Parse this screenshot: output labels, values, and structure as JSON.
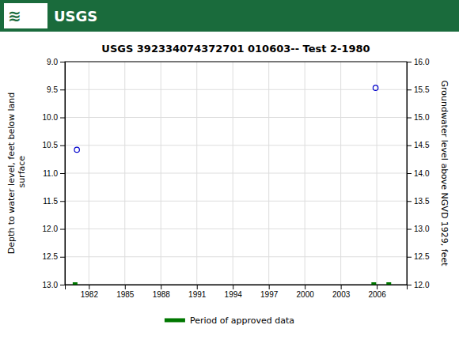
{
  "chart_data": {
    "type": "scatter",
    "title": "USGS 392334074372701 010603-- Test 2-1980",
    "ylabel": "Depth to water level, feet below land\n surface",
    "y2label": "Groundwater level above NGVD 1929, feet",
    "annotations": [
      {
        "text": "≋"
      },
      {
        "text": "USGS"
      }
    ],
    "xlim": [
      1980.0,
      2008.5
    ],
    "xticks": [
      1982,
      1985,
      1988,
      1991,
      1994,
      1997,
      2000,
      2003,
      2006
    ],
    "ylim": [
      13.0,
      9.0
    ],
    "yticks": [
      {
        "value": 9.0,
        "label": "9.0"
      },
      9.5,
      {
        "value": 10.0,
        "label": "10.0"
      },
      10.5,
      {
        "value": 11.0,
        "label": "11.0"
      },
      11.5,
      {
        "value": 12.0,
        "label": "12.0"
      },
      12.5,
      {
        "value": 13.0,
        "label": "13.0"
      }
    ],
    "y2lim": [
      12.0,
      16.0
    ],
    "y2ticks": [
      {
        "value": 16.0,
        "label": "16.0"
      },
      15.5,
      {
        "value": 15.0,
        "label": "15.0"
      },
      14.5,
      {
        "value": 14.0,
        "label": "14.0"
      },
      13.5,
      {
        "value": 13.0,
        "label": "13.0"
      },
      12.5,
      {
        "value": 12.0,
        "label": "12.0"
      }
    ],
    "grid": true,
    "legend": "bottom",
    "series": [
      {
        "color": "#0000cc",
        "marker": "circle",
        "x": [
          1981.0,
          2005.9
        ],
        "values": [
          10.58,
          9.47
        ]
      },
      {
        "name": "Period of approved data",
        "color": "#007700",
        "marker": "square",
        "x": [
          1980.85,
          2005.75,
          2007.0
        ],
        "values": [
          13.0,
          13.0,
          13.0
        ]
      }
    ]
  }
}
